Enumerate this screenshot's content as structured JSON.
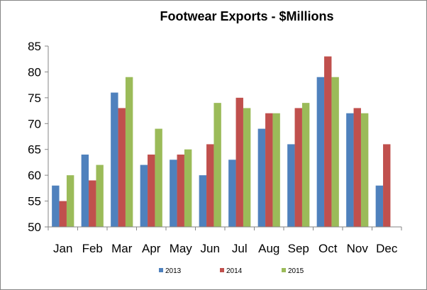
{
  "chart_data": {
    "type": "bar",
    "title": "Footwear Exports - $Millions",
    "xlabel": "",
    "ylabel": "",
    "categories": [
      "Jan",
      "Feb",
      "Mar",
      "Apr",
      "May",
      "Jun",
      "Jul",
      "Aug",
      "Sep",
      "Oct",
      "Nov",
      "Dec"
    ],
    "ylim": [
      50,
      85
    ],
    "yticks": [
      50,
      55,
      60,
      65,
      70,
      75,
      80,
      85
    ],
    "grid": false,
    "legend_position": "bottom",
    "series": [
      {
        "name": "2013",
        "color": "#4F81BD",
        "values": [
          58,
          64,
          76,
          62,
          63,
          60,
          63,
          69,
          66,
          79,
          72,
          58
        ]
      },
      {
        "name": "2014",
        "color": "#C0504D",
        "values": [
          55,
          59,
          73,
          64,
          64,
          66,
          75,
          72,
          73,
          83,
          73,
          66
        ]
      },
      {
        "name": "2015",
        "color": "#9BBB59",
        "values": [
          60,
          62,
          79,
          69,
          65,
          74,
          73,
          72,
          74,
          79,
          72,
          null
        ]
      }
    ]
  }
}
